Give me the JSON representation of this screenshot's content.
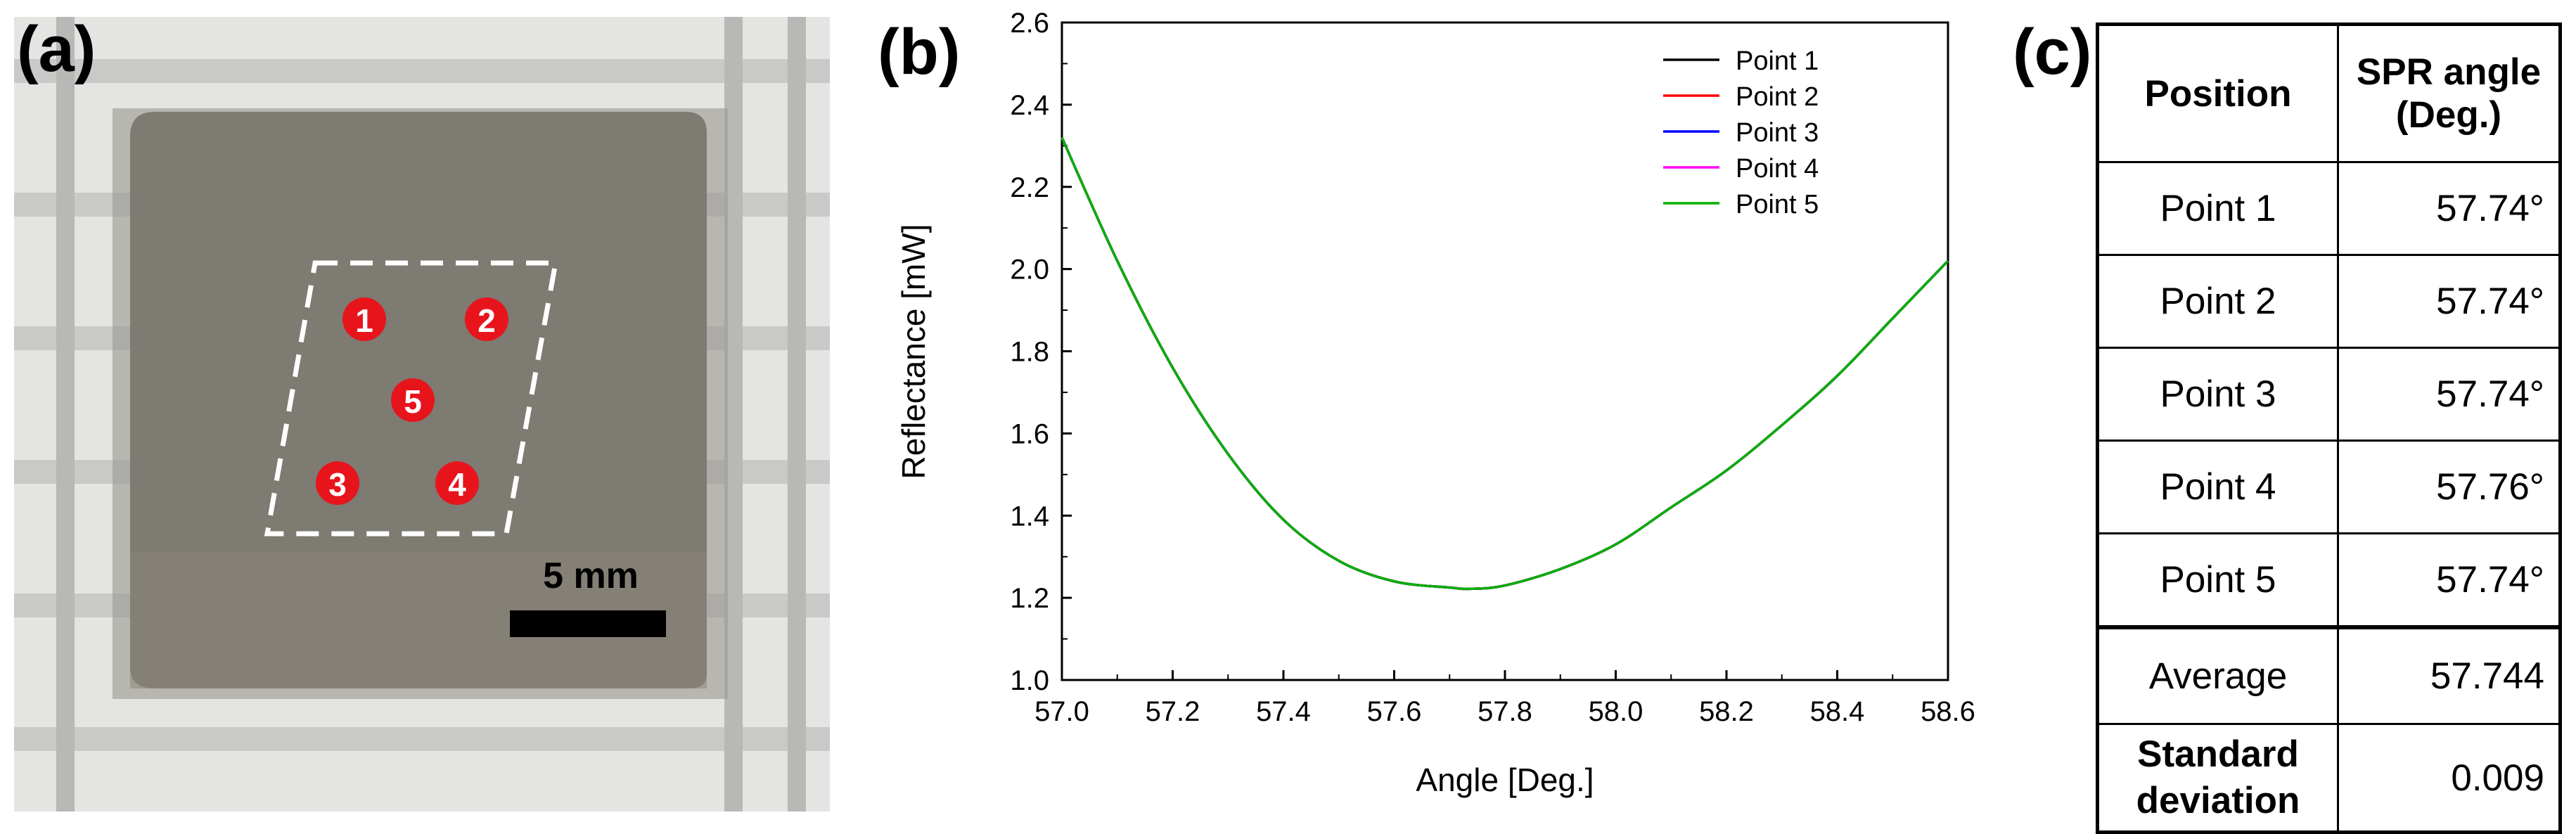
{
  "panels": {
    "a": "(a)",
    "b": "(b)",
    "c": "(c)"
  },
  "photo": {
    "points": [
      "1",
      "2",
      "3",
      "4",
      "5"
    ],
    "scale_bar_label": "5 mm",
    "colors": {
      "marker": "#e8141c",
      "sample": "#7d7b72",
      "rack": "#d9d9d7"
    }
  },
  "chart_data": {
    "type": "line",
    "title": "",
    "xlabel": "Angle [Deg.]",
    "ylabel": "Reflectance [mW]",
    "xlim": [
      57.0,
      58.6
    ],
    "ylim": [
      1.0,
      2.6
    ],
    "x_ticks": [
      "57.0",
      "57.2",
      "57.4",
      "57.6",
      "57.8",
      "58.0",
      "58.2",
      "58.4",
      "58.6"
    ],
    "y_ticks": [
      "1.0",
      "1.2",
      "1.4",
      "1.6",
      "1.8",
      "2.0",
      "2.2",
      "2.4",
      "2.6"
    ],
    "legend_position": "top-right",
    "x": [
      57.0,
      57.1,
      57.2,
      57.3,
      57.4,
      57.5,
      57.6,
      57.7,
      57.74,
      57.8,
      57.9,
      58.0,
      58.1,
      58.2,
      58.3,
      58.4,
      58.5,
      58.6
    ],
    "series": [
      {
        "name": "Point 1",
        "color": "#000000",
        "values": [
          2.32,
          2.02,
          1.76,
          1.55,
          1.39,
          1.29,
          1.24,
          1.225,
          1.222,
          1.23,
          1.27,
          1.33,
          1.42,
          1.51,
          1.62,
          1.74,
          1.88,
          2.02
        ]
      },
      {
        "name": "Point 2",
        "color": "#ff0000",
        "values": [
          2.32,
          2.02,
          1.76,
          1.55,
          1.39,
          1.29,
          1.24,
          1.225,
          1.222,
          1.23,
          1.27,
          1.33,
          1.42,
          1.51,
          1.62,
          1.74,
          1.88,
          2.02
        ]
      },
      {
        "name": "Point 3",
        "color": "#0000ff",
        "values": [
          2.32,
          2.02,
          1.76,
          1.55,
          1.39,
          1.29,
          1.24,
          1.225,
          1.222,
          1.23,
          1.27,
          1.33,
          1.42,
          1.51,
          1.62,
          1.74,
          1.88,
          2.02
        ]
      },
      {
        "name": "Point 4",
        "color": "#ff00ff",
        "values": [
          2.32,
          2.02,
          1.76,
          1.55,
          1.39,
          1.29,
          1.24,
          1.225,
          1.222,
          1.23,
          1.27,
          1.33,
          1.42,
          1.51,
          1.62,
          1.74,
          1.88,
          2.02
        ]
      },
      {
        "name": "Point 5",
        "color": "#00b000",
        "values": [
          2.32,
          2.02,
          1.76,
          1.55,
          1.39,
          1.29,
          1.24,
          1.225,
          1.222,
          1.23,
          1.27,
          1.33,
          1.42,
          1.51,
          1.62,
          1.74,
          1.88,
          2.02
        ]
      }
    ]
  },
  "table": {
    "headers": [
      "Position",
      "SPR angle\n(Deg.)"
    ],
    "rows": [
      {
        "position": "Point 1",
        "angle": "57.74°"
      },
      {
        "position": "Point 2",
        "angle": "57.74°"
      },
      {
        "position": "Point 3",
        "angle": "57.74°"
      },
      {
        "position": "Point 4",
        "angle": "57.76°"
      },
      {
        "position": "Point 5",
        "angle": "57.74°"
      }
    ],
    "average_label": "Average",
    "average_value": "57.744",
    "std_label": "Standard\ndeviation",
    "std_value": "0.009"
  }
}
